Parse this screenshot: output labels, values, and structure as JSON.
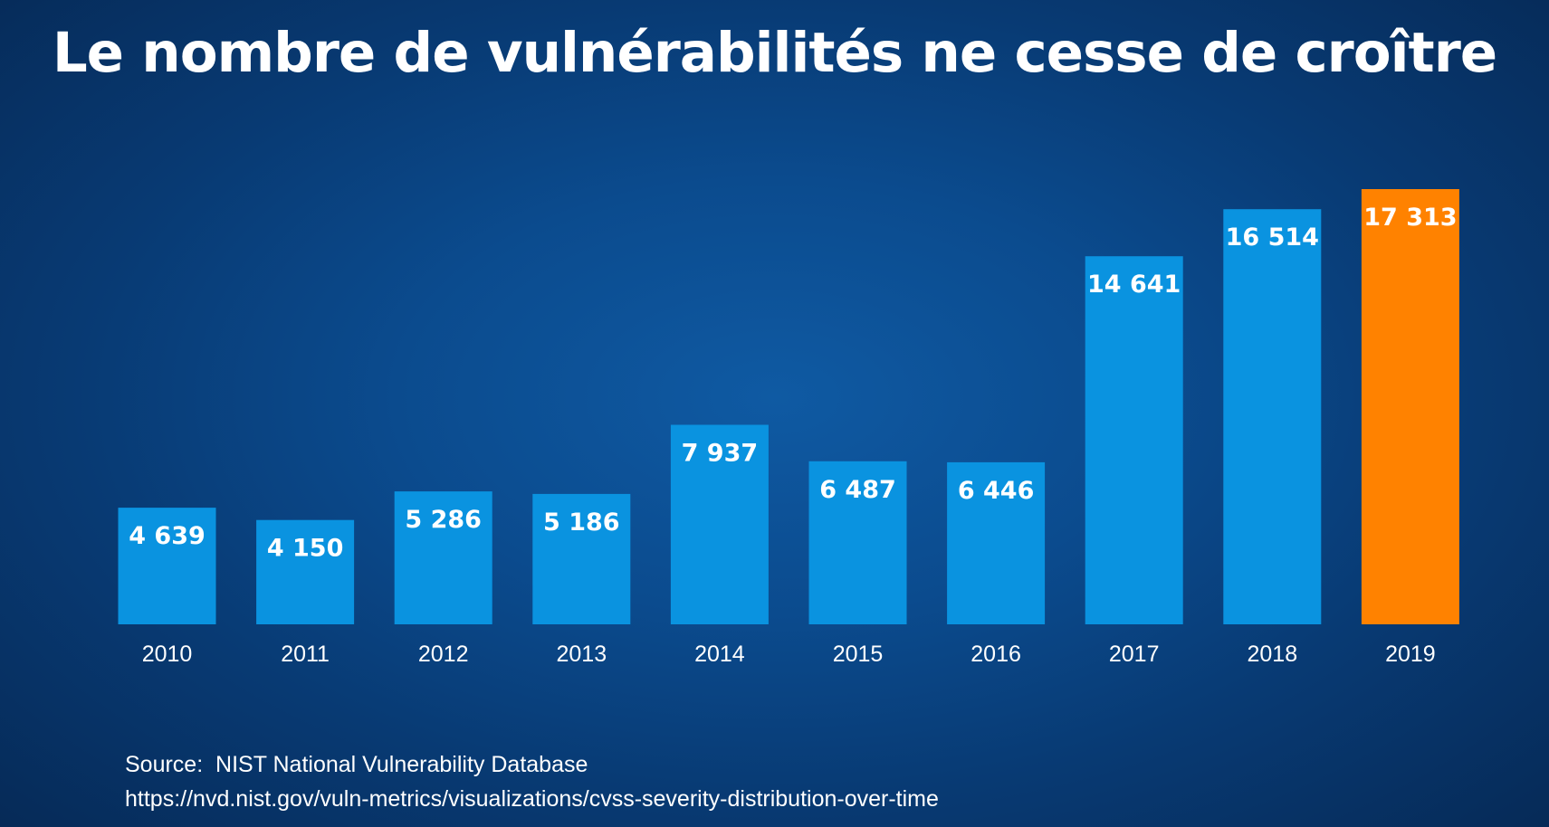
{
  "chart_data": {
    "type": "bar",
    "title": "Le nombre de vulnérabilités ne cesse de croître",
    "categories": [
      "2010",
      "2011",
      "2012",
      "2013",
      "2014",
      "2015",
      "2016",
      "2017",
      "2018",
      "2019"
    ],
    "values": [
      4639,
      4150,
      5286,
      5186,
      7937,
      6487,
      6446,
      14641,
      16514,
      17313
    ],
    "value_labels": [
      "4 639",
      "4 150",
      "5 286",
      "5 186",
      "7 937",
      "6 487",
      "6 446",
      "14 641",
      "16 514",
      "17 313"
    ],
    "ylim": [
      0,
      17313
    ],
    "xlabel": "",
    "ylabel": "",
    "grid": false,
    "colors": {
      "default_bar": "#0a93e0",
      "highlight_bar": "#ff8200",
      "highlight_category": "2019"
    }
  },
  "source": {
    "line1": "Source:  NIST National Vulnerability Database",
    "line2": "https://nvd.nist.gov/vuln-metrics/visualizations/cvss-severity-distribution-over-time"
  }
}
